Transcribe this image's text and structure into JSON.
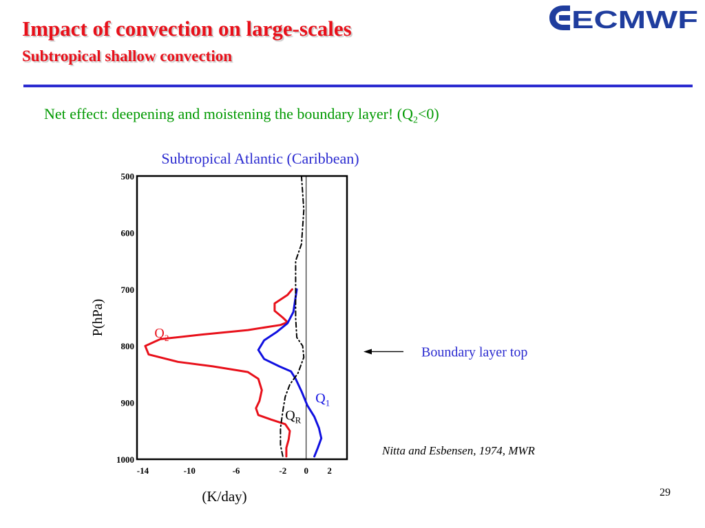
{
  "slide": {
    "title": "Impact of convection on large-scales",
    "subtitle": "Subtropical shallow convection",
    "logo_text": "ECMWF",
    "note_prefix": "Net effect:  deepening and moistening the boundary layer!  (Q",
    "note_sub": "2",
    "note_suffix": "<0)",
    "citation": "Nitta and Esbensen, 1974, MWR",
    "page_number": "29"
  },
  "colors": {
    "title": "#e8101a",
    "rule": "#2b2bd0",
    "note": "#009900",
    "label_blue": "#2b2bd0",
    "logo": "#1f3d9e",
    "q1": "#1010e0",
    "q2": "#e8101a",
    "qr": "#000000"
  },
  "chart_data": {
    "type": "line",
    "title": "Subtropical Atlantic (Caribbean)",
    "xlabel": "(K/day)",
    "ylabel": "P(hPa)",
    "xlim": [
      -14.5,
      3.5
    ],
    "ylim": [
      500,
      1000
    ],
    "y_inverted": true,
    "x_ticks": [
      "-14",
      "-10",
      "-6",
      "-2",
      "0",
      "2"
    ],
    "x_tick_values": [
      -14,
      -10,
      -6,
      -2,
      0,
      2
    ],
    "y_ticks": [
      "500",
      "600",
      "700",
      "800",
      "900",
      "1000"
    ],
    "y_tick_values": [
      500,
      600,
      700,
      800,
      900,
      1000
    ],
    "annotation": "Boundary layer top",
    "annotation_pressure": 810,
    "series": [
      {
        "name": "Q2",
        "label_main": "Q",
        "label_sub": "2",
        "color_key": "q2",
        "style": "solid",
        "label_x": -13.0,
        "label_y": 785,
        "points": [
          [
            -1.2,
            700
          ],
          [
            -1.6,
            710
          ],
          [
            -2.7,
            725
          ],
          [
            -2.7,
            738
          ],
          [
            -2.0,
            750
          ],
          [
            -1.6,
            758
          ],
          [
            -2.2,
            763
          ],
          [
            -5.0,
            772
          ],
          [
            -9.0,
            780
          ],
          [
            -12.5,
            788
          ],
          [
            -13.8,
            800
          ],
          [
            -13.5,
            815
          ],
          [
            -11.0,
            828
          ],
          [
            -8.0,
            836
          ],
          [
            -5.0,
            846
          ],
          [
            -4.1,
            858
          ],
          [
            -3.8,
            878
          ],
          [
            -4.0,
            897
          ],
          [
            -4.3,
            910
          ],
          [
            -4.1,
            922
          ],
          [
            -3.0,
            930
          ],
          [
            -1.8,
            938
          ],
          [
            -1.4,
            950
          ],
          [
            -1.5,
            965
          ],
          [
            -1.7,
            980
          ],
          [
            -1.7,
            995
          ]
        ]
      },
      {
        "name": "Q1",
        "label_main": "Q",
        "label_sub": "1",
        "color_key": "q1",
        "style": "solid",
        "label_x": 0.8,
        "label_y": 900,
        "points": [
          [
            -0.8,
            700
          ],
          [
            -1.1,
            740
          ],
          [
            -1.6,
            760
          ],
          [
            -2.5,
            775
          ],
          [
            -3.6,
            790
          ],
          [
            -4.1,
            807
          ],
          [
            -3.6,
            823
          ],
          [
            -2.3,
            836
          ],
          [
            -1.3,
            845
          ],
          [
            -0.9,
            858
          ],
          [
            -0.4,
            880
          ],
          [
            0.1,
            905
          ],
          [
            0.7,
            925
          ],
          [
            1.1,
            945
          ],
          [
            1.3,
            963
          ],
          [
            1.0,
            980
          ],
          [
            0.7,
            995
          ]
        ]
      },
      {
        "name": "QR",
        "label_main": "Q",
        "label_sub": "R",
        "color_key": "qr",
        "style": "dashdot",
        "label_x": -1.8,
        "label_y": 930,
        "points": [
          [
            -0.4,
            500
          ],
          [
            -0.2,
            560
          ],
          [
            -0.4,
            620
          ],
          [
            -0.9,
            650
          ],
          [
            -0.9,
            700
          ],
          [
            -0.9,
            750
          ],
          [
            -0.8,
            785
          ],
          [
            -0.3,
            800
          ],
          [
            -0.2,
            820
          ],
          [
            -0.7,
            848
          ],
          [
            -1.4,
            868
          ],
          [
            -1.8,
            890
          ],
          [
            -2.0,
            915
          ],
          [
            -2.2,
            945
          ],
          [
            -2.2,
            975
          ],
          [
            -2.0,
            995
          ]
        ]
      }
    ]
  }
}
